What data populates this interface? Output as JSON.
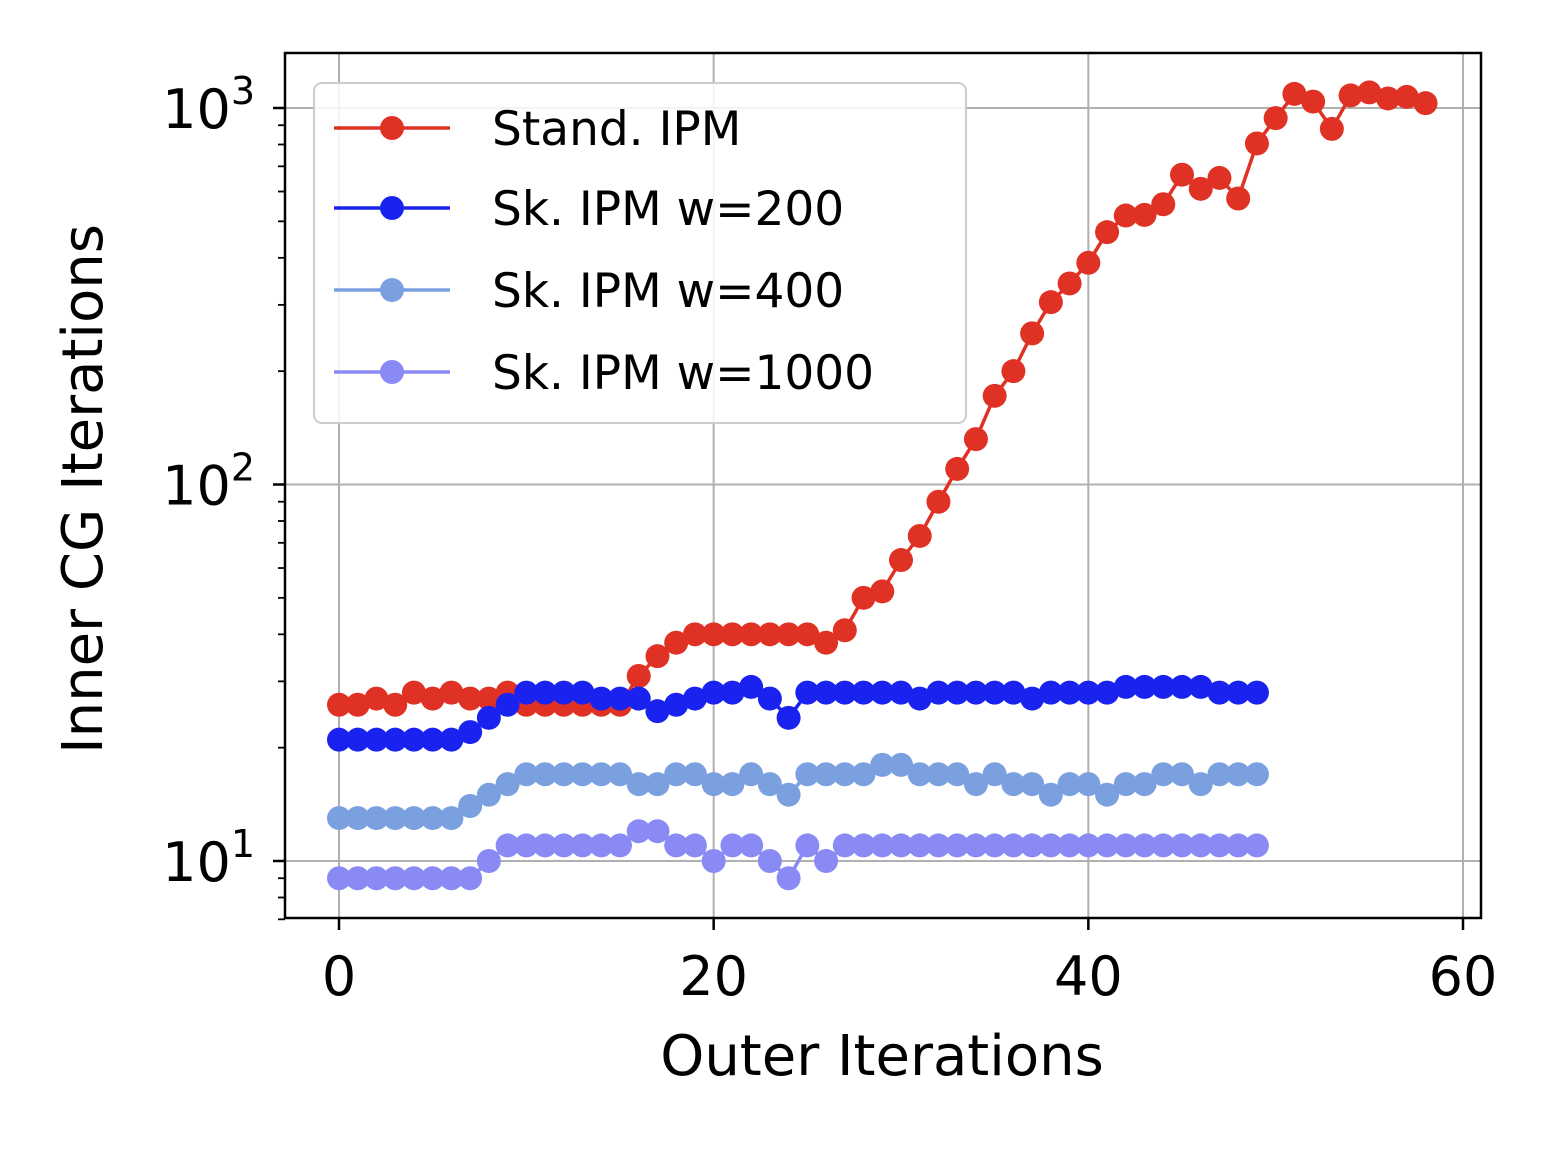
{
  "chart_data": {
    "type": "line",
    "xlabel": "Outer Iterations",
    "ylabel": "Inner CG Iterations",
    "xlim": [
      -3,
      61
    ],
    "ylim": [
      7,
      1420
    ],
    "yscale": "log",
    "grid": true,
    "legend_position": "top-left",
    "x_ticks": [
      {
        "value": 0,
        "label": "0"
      },
      {
        "value": 20,
        "label": "20"
      },
      {
        "value": 40,
        "label": "40"
      },
      {
        "value": 60,
        "label": "60"
      }
    ],
    "y_ticks": [
      {
        "value": 10,
        "base": "10",
        "exp": "1"
      },
      {
        "value": 100,
        "base": "10",
        "exp": "2"
      },
      {
        "value": 1000,
        "base": "10",
        "exp": "3"
      }
    ],
    "series": [
      {
        "name": "Stand. IPM",
        "color": "#e03224",
        "values": [
          26,
          26,
          27,
          26,
          28,
          27,
          28,
          27,
          27,
          28,
          26,
          26,
          26,
          26,
          26,
          26,
          31,
          35,
          38,
          40,
          40,
          40,
          40,
          40,
          40,
          40,
          38,
          41,
          50,
          52,
          63,
          73,
          90,
          110,
          132,
          172,
          200,
          252,
          305,
          342,
          388,
          468,
          518,
          520,
          555,
          665,
          610,
          652,
          575,
          805,
          940,
          1090,
          1040,
          880,
          1080,
          1100,
          1060,
          1070,
          1030
        ]
      },
      {
        "name": "Sk. IPM w=200",
        "color": "#1a22f0",
        "values": [
          21,
          21,
          21,
          21,
          21,
          21,
          21,
          22,
          24,
          26,
          28,
          28,
          28,
          28,
          27,
          27,
          27,
          25,
          26,
          27,
          28,
          28,
          29,
          27,
          24,
          28,
          28,
          28,
          28,
          28,
          28,
          27,
          28,
          28,
          28,
          28,
          28,
          27,
          28,
          28,
          28,
          28,
          29,
          29,
          29,
          29,
          29,
          28,
          28,
          28
        ]
      },
      {
        "name": "Sk. IPM w=400",
        "color": "#7aa0e0",
        "values": [
          13,
          13,
          13,
          13,
          13,
          13,
          13,
          14,
          15,
          16,
          17,
          17,
          17,
          17,
          17,
          17,
          16,
          16,
          17,
          17,
          16,
          16,
          17,
          16,
          15,
          17,
          17,
          17,
          17,
          18,
          18,
          17,
          17,
          17,
          16,
          17,
          16,
          16,
          15,
          16,
          16,
          15,
          16,
          16,
          17,
          17,
          16,
          17,
          17,
          17
        ]
      },
      {
        "name": "Sk. IPM w=1000",
        "color": "#8a8af5",
        "values": [
          9,
          9,
          9,
          9,
          9,
          9,
          9,
          9,
          10,
          11,
          11,
          11,
          11,
          11,
          11,
          11,
          12,
          12,
          11,
          11,
          10,
          11,
          11,
          10,
          9,
          11,
          10,
          11,
          11,
          11,
          11,
          11,
          11,
          11,
          11,
          11,
          11,
          11,
          11,
          11,
          11,
          11,
          11,
          11,
          11,
          11,
          11,
          11,
          11,
          11
        ]
      }
    ]
  }
}
